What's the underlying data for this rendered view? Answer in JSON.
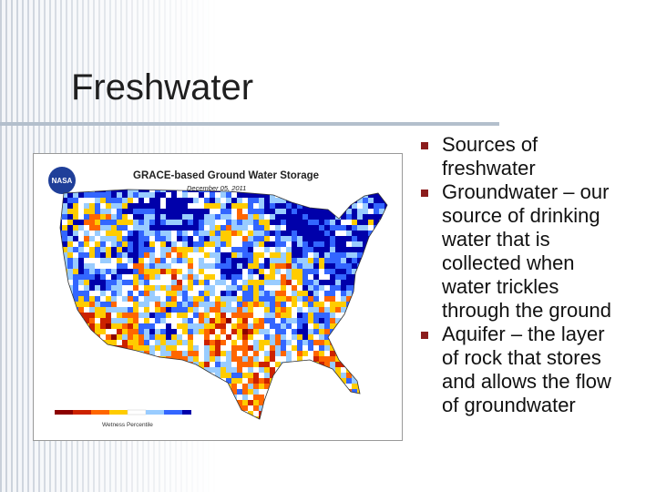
{
  "header": {
    "title": "Freshwater"
  },
  "bullets": [
    "Sources of freshwater",
    "Groundwater – our source of drinking water that is collected when water trickles through the ground",
    "Aquifer – the layer of rock that stores and allows the flow of groundwater"
  ],
  "figure": {
    "title": "GRACE-based Ground Water Storage",
    "date": "December 05, 2011",
    "logo": "NASA",
    "legend_label": "Wetness Percentile"
  }
}
